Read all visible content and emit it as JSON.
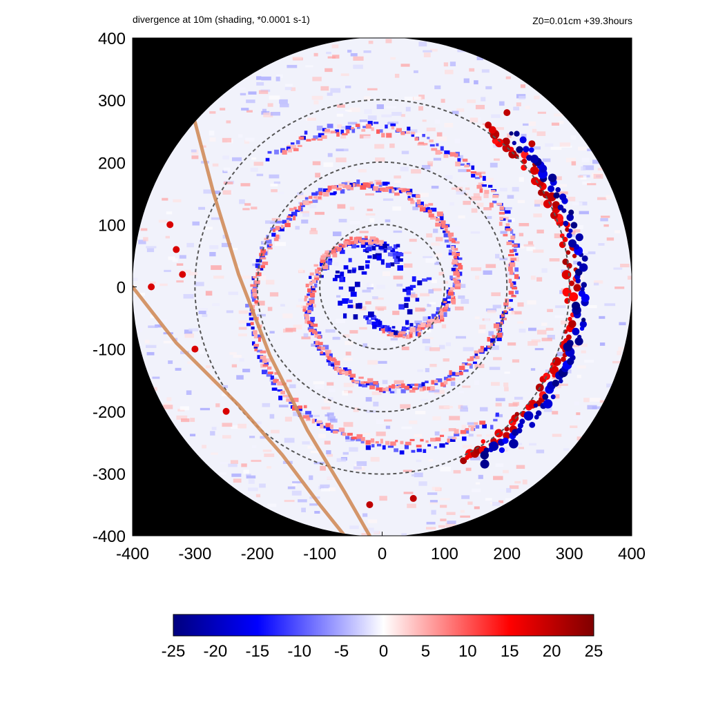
{
  "title_left": "divergence at 10m (shading, *0.0001 s-1)",
  "title_right": "Z0=0.01cm  +39.3hours",
  "colors": {
    "outside": "#000000",
    "dashed_circles": "#555555",
    "track_lines": "#d08c5a",
    "negative_strong": "#00007f",
    "negative": "#0000ff",
    "neutral": "#ffffff",
    "positive": "#ff0000",
    "positive_strong": "#7f0000"
  },
  "chart_data": {
    "type": "heatmap",
    "title": "divergence at 10m (shading, *0.0001 s-1)",
    "annotation": "Z0=0.01cm  +39.3hours",
    "xlim": [
      -400,
      400
    ],
    "ylim": [
      -400,
      400
    ],
    "x_ticks": [
      -400,
      -300,
      -200,
      -100,
      0,
      100,
      200,
      300,
      400
    ],
    "y_ticks": [
      -400,
      -300,
      -200,
      -100,
      0,
      100,
      200,
      300,
      400
    ],
    "x_tick_labels": [
      "-400",
      "-300",
      "-200",
      "-100",
      "0",
      "100",
      "200",
      "300",
      "400"
    ],
    "y_tick_labels": [
      "-400",
      "-300",
      "-200",
      "-100",
      "0",
      "100",
      "200",
      "300",
      "400"
    ],
    "domain_radius": 400,
    "dashed_circle_radii": [
      100,
      200,
      300
    ],
    "track_lines": [
      [
        [
          -300,
          265
        ],
        [
          -270,
          150
        ],
        [
          -230,
          20
        ],
        [
          -180,
          -110
        ],
        [
          -120,
          -230
        ],
        [
          -60,
          -330
        ],
        [
          -20,
          -400
        ]
      ],
      [
        [
          -400,
          0
        ],
        [
          -330,
          -90
        ],
        [
          -230,
          -190
        ],
        [
          -160,
          -270
        ],
        [
          -100,
          -350
        ],
        [
          -60,
          -400
        ]
      ]
    ],
    "features": [
      {
        "sign": "positive",
        "shape": "band",
        "center_angle_deg": -5,
        "radius": 305,
        "span_deg": 120,
        "magnitude": 22
      },
      {
        "sign": "negative",
        "shape": "band",
        "center_angle_deg": -5,
        "radius": 320,
        "span_deg": 110,
        "magnitude": -25
      },
      {
        "sign": "negative",
        "shape": "spiral",
        "radius_start": 50,
        "radius_end": 280,
        "angle_start_deg": 60,
        "turns": 1.2,
        "magnitude": -18
      },
      {
        "sign": "positive",
        "shape": "spiral",
        "radius_start": 70,
        "radius_end": 270,
        "angle_start_deg": 90,
        "turns": 1.1,
        "magnitude": 10
      },
      {
        "sign": "negative",
        "shape": "eyewall",
        "radius": 60,
        "magnitude": -22
      },
      {
        "sign": "positive",
        "shape": "spots",
        "x": [
          -330,
          -340,
          -320,
          -370,
          -300,
          -250
        ],
        "y": [
          60,
          100,
          20,
          0,
          -100,
          -200
        ],
        "magnitude": 18
      },
      {
        "sign": "positive",
        "shape": "spots",
        "x": [
          -20,
          50,
          200,
          240,
          170
        ],
        "y": [
          -350,
          -340,
          280,
          230,
          260
        ],
        "magnitude": 20
      }
    ],
    "colorbar": {
      "ticks": [
        -25,
        -20,
        -15,
        -10,
        -5,
        0,
        5,
        10,
        15,
        20,
        25
      ],
      "tick_labels": [
        "-25",
        "-20",
        "-15",
        "-10",
        "-5",
        "0",
        "5",
        "10",
        "15",
        "20",
        "25"
      ],
      "range": [
        -25,
        25
      ],
      "colormap": "blue-white-red"
    }
  }
}
